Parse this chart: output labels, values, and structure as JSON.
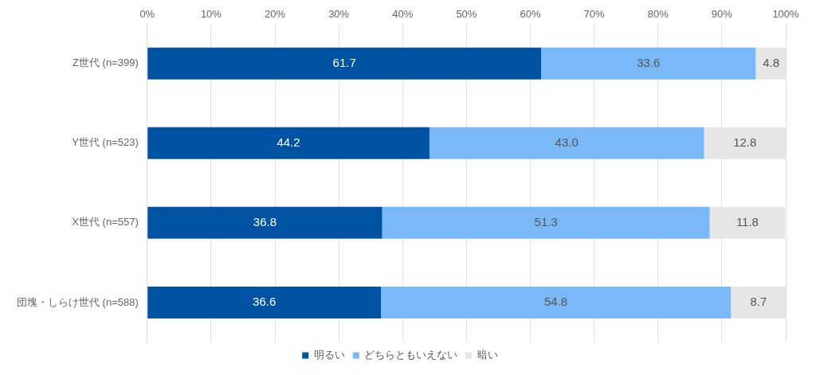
{
  "chart_data": {
    "type": "bar",
    "orientation": "horizontal",
    "stacked": true,
    "categories": [
      "Z世代 (n=399)",
      "Y世代 (n=523)",
      "X世代 (n=557)",
      "団塊・しらけ世代 (n=588)"
    ],
    "series": [
      {
        "name": "明るい",
        "color": "#0052a3",
        "values": [
          61.7,
          44.2,
          36.8,
          36.6
        ],
        "value_labels": [
          "61.7",
          "44.2",
          "36.8",
          "36.6"
        ]
      },
      {
        "name": "どちらともいえない",
        "color": "#7ab9f7",
        "values": [
          33.6,
          43.0,
          51.3,
          54.8
        ],
        "value_labels": [
          "33.6",
          "43.0",
          "51.3",
          "54.8"
        ]
      },
      {
        "name": "暗い",
        "color": "#e6e6e6",
        "values": [
          4.8,
          12.8,
          11.8,
          8.7
        ],
        "value_labels": [
          "4.8",
          "12.8",
          "11.8",
          "8.7"
        ]
      }
    ],
    "xlim": [
      0,
      100
    ],
    "xticks": [
      {
        "value": 0,
        "label": "0%"
      },
      {
        "value": 10,
        "label": "10%"
      },
      {
        "value": 20,
        "label": "20%"
      },
      {
        "value": 30,
        "label": "30%"
      },
      {
        "value": 40,
        "label": "40%"
      },
      {
        "value": 50,
        "label": "50%"
      },
      {
        "value": 60,
        "label": "60%"
      },
      {
        "value": 70,
        "label": "70%"
      },
      {
        "value": 80,
        "label": "80%"
      },
      {
        "value": 90,
        "label": "90%"
      },
      {
        "value": 100,
        "label": "100%"
      }
    ],
    "grid": "x",
    "legend": "bottom"
  }
}
